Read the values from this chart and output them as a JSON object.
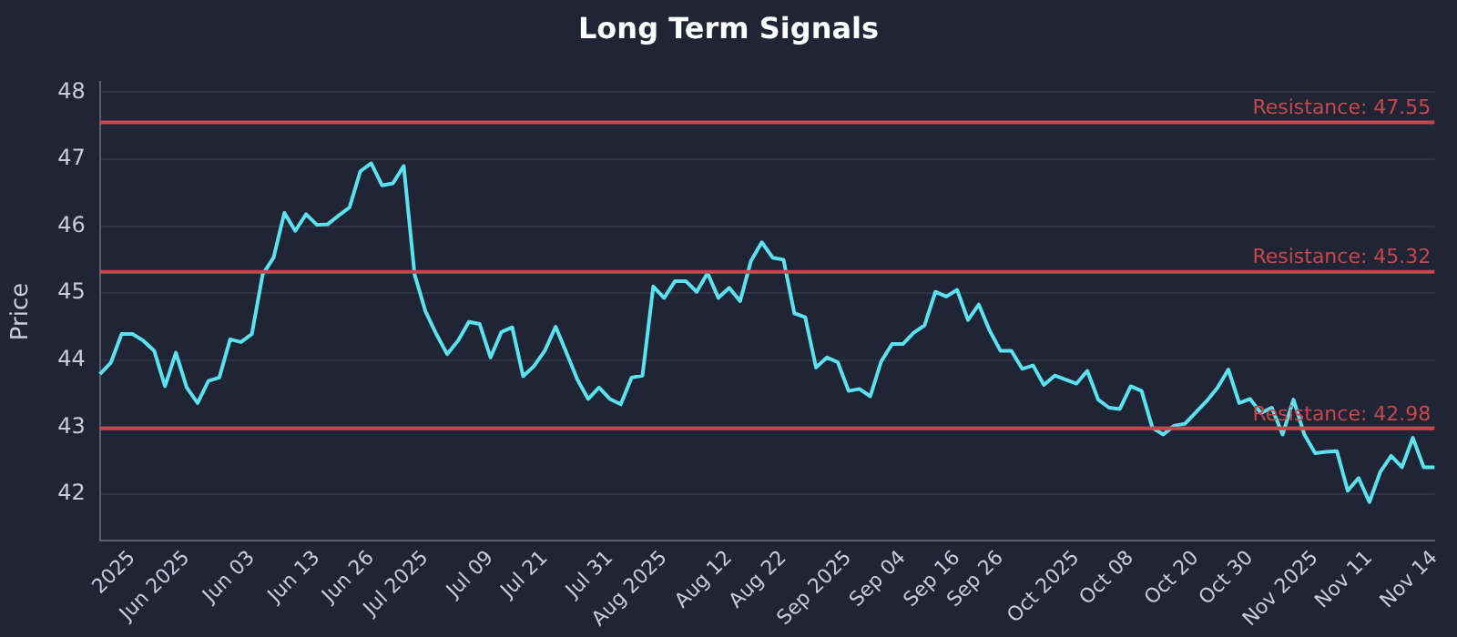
{
  "chart_data": {
    "type": "line",
    "title": "Long Term Signals",
    "ylabel": "Price",
    "categories": [
      null,
      null,
      null,
      "2025",
      null,
      null,
      null,
      null,
      "Jun 2025",
      null,
      null,
      null,
      null,
      null,
      "Jun 03",
      null,
      null,
      null,
      null,
      null,
      "Jun 13",
      null,
      null,
      null,
      null,
      "Jun 26",
      null,
      null,
      null,
      null,
      "Jul 2025",
      null,
      null,
      null,
      null,
      null,
      "Jul 09",
      null,
      null,
      null,
      null,
      "Jul 21",
      null,
      null,
      null,
      null,
      null,
      "Jul 31",
      null,
      null,
      null,
      null,
      "Aug 2025",
      null,
      null,
      null,
      null,
      null,
      "Aug 12",
      null,
      null,
      null,
      null,
      "Aug 22",
      null,
      null,
      null,
      null,
      null,
      "Sep 2025",
      null,
      null,
      null,
      null,
      "Sep 04",
      null,
      null,
      null,
      null,
      "Sep 16",
      null,
      null,
      null,
      "Sep 26",
      null,
      null,
      null,
      null,
      null,
      null,
      "Oct 2025",
      null,
      null,
      null,
      null,
      "Oct 08",
      null,
      null,
      null,
      null,
      null,
      "Oct 20",
      null,
      null,
      null,
      null,
      "Oct 30",
      null,
      null,
      null,
      null,
      null,
      "Nov 2025",
      null,
      null,
      null,
      null,
      "Nov 11",
      null,
      null,
      null,
      null,
      null,
      "Nov 14"
    ],
    "series": [
      {
        "color": "#5ce1f0",
        "values": [
          43.79,
          43.96,
          44.39,
          44.39,
          44.29,
          44.14,
          43.61,
          44.11,
          43.59,
          43.36,
          43.69,
          43.74,
          44.31,
          44.27,
          44.39,
          45.28,
          45.53,
          46.2,
          45.93,
          46.18,
          46.02,
          46.03,
          46.16,
          46.28,
          46.82,
          46.94,
          46.61,
          46.64,
          46.9,
          45.28,
          44.73,
          44.39,
          44.09,
          44.29,
          44.57,
          44.54,
          44.04,
          44.42,
          44.49,
          43.76,
          43.91,
          44.14,
          44.5,
          44.11,
          43.71,
          43.42,
          43.59,
          43.42,
          43.34,
          43.74,
          43.77,
          45.1,
          44.93,
          45.18,
          45.18,
          45.02,
          45.3,
          44.93,
          45.08,
          44.88,
          45.48,
          45.76,
          45.53,
          45.5,
          44.7,
          44.64,
          43.89,
          44.04,
          43.97,
          43.54,
          43.57,
          43.46,
          43.98,
          44.24,
          44.24,
          44.41,
          44.52,
          45.02,
          44.95,
          45.05,
          44.6,
          44.83,
          44.44,
          44.14,
          44.14,
          43.87,
          43.92,
          43.63,
          43.77,
          43.71,
          43.65,
          43.84,
          43.41,
          43.29,
          43.27,
          43.61,
          43.54,
          42.99,
          42.89,
          43.02,
          43.05,
          43.22,
          43.39,
          43.59,
          43.86,
          43.36,
          43.42,
          43.21,
          43.29,
          42.89,
          43.41,
          42.89,
          42.61,
          42.63,
          42.64,
          42.05,
          42.24,
          41.88,
          42.33,
          42.57,
          42.4,
          42.84,
          42.4,
          42.4
        ]
      }
    ],
    "ylim": [
      41.3,
      48.15
    ],
    "yticks": [
      42,
      43,
      44,
      45,
      46,
      47,
      48
    ],
    "grid": "y",
    "legend": false,
    "marker": "none",
    "line_style": "solid",
    "ref_lines": [
      {
        "axis": "y",
        "value": 47.55,
        "label": "Resistance: 47.55",
        "color": "#c8474c"
      },
      {
        "axis": "y",
        "value": 45.32,
        "label": "Resistance: 45.32",
        "color": "#c8474c"
      },
      {
        "axis": "y",
        "value": 42.98,
        "label": "Resistance: 42.98",
        "color": "#c8474c"
      }
    ]
  }
}
